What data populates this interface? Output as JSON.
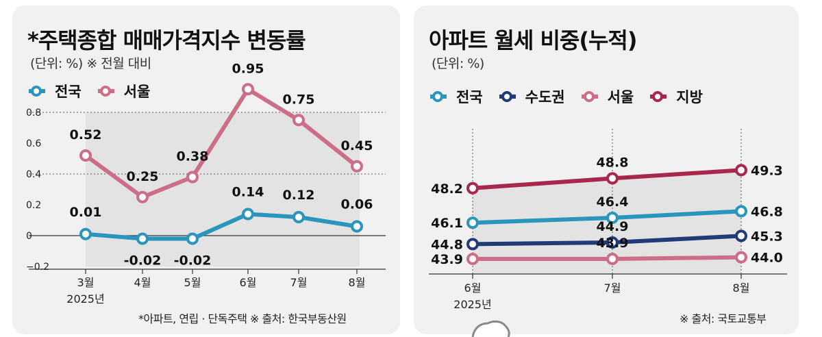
{
  "colors": {
    "national": "#2a96bb",
    "capital": "#213a78",
    "seoul": "#cc6e87",
    "regional": "#a7274d"
  },
  "left": {
    "title": "*주택종합 매매가격지수 변동률",
    "subtitle": "(단위: %) ※ 전월 대비",
    "footnote": "*아파트, 연립 · 단독주택  ※ 출처: 한국부동산원"
  },
  "right": {
    "title": "아파트 월세 비중(누적)",
    "subtitle": "(단위: %)",
    "footnote": "※ 출처: 국토교통부"
  },
  "chart_data": [
    {
      "type": "line",
      "title": "*주택종합 매매가격지수 변동률",
      "subtitle": "(단위: %) ※ 전월 대비",
      "categories": [
        "3월",
        "4월",
        "5월",
        "6월",
        "7월",
        "8월"
      ],
      "year_label": "2025년",
      "yticks": [
        "0.8",
        "0.6",
        "0.4",
        "0.2",
        "0",
        "−0.2"
      ],
      "ylim": [
        -0.2,
        0.8
      ],
      "grid": "dotted at 0.8 and 0.4, solid baseline at 0",
      "legend_placement": "top-left",
      "series": [
        {
          "name": "전국",
          "values": [
            0.01,
            -0.02,
            -0.02,
            0.14,
            0.12,
            0.06
          ],
          "labels": [
            "0.01",
            "-0.02",
            "-0.02",
            "0.14",
            "0.12",
            "0.06"
          ],
          "color": "#2a96bb"
        },
        {
          "name": "서울",
          "values": [
            0.52,
            0.25,
            0.38,
            0.95,
            0.75,
            0.45
          ],
          "labels": [
            "0.52",
            "0.25",
            "0.38",
            "0.95",
            "0.75",
            "0.45"
          ],
          "color": "#cc6e87"
        }
      ]
    },
    {
      "type": "line",
      "title": "아파트 월세 비중(누적)",
      "subtitle": "(단위: %)",
      "categories": [
        "6월",
        "7월",
        "8월"
      ],
      "year_label": "2025년",
      "ylim": [
        43.5,
        49.8
      ],
      "legend_placement": "top-left",
      "series": [
        {
          "name": "전국",
          "values": [
            46.1,
            46.4,
            46.8
          ],
          "labels": [
            "46.1",
            "46.4",
            "46.8"
          ],
          "color": "#2a96bb"
        },
        {
          "name": "수도권",
          "values": [
            44.8,
            44.9,
            45.3
          ],
          "labels": [
            "44.8",
            "44.9",
            "45.3"
          ],
          "color": "#213a78"
        },
        {
          "name": "서울",
          "values": [
            43.9,
            43.9,
            44.0
          ],
          "labels": [
            "43.9",
            "43.9",
            "44.0"
          ],
          "color": "#cc6e87"
        },
        {
          "name": "지방",
          "values": [
            48.2,
            48.8,
            49.3
          ],
          "labels": [
            "48.2",
            "48.8",
            "49.3"
          ],
          "color": "#a7274d"
        }
      ]
    }
  ]
}
